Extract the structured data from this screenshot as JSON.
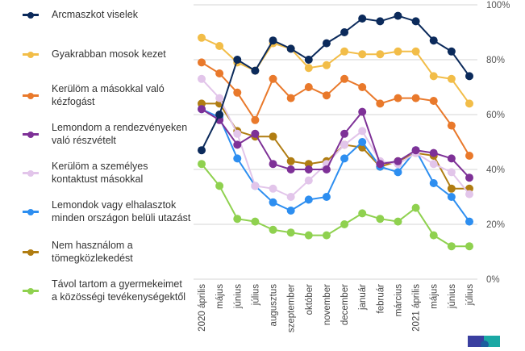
{
  "chart_data": {
    "type": "line",
    "title": "",
    "xlabel": "",
    "ylabel": "",
    "ylim": [
      0,
      100
    ],
    "y_ticks": [
      "0%",
      "20%",
      "40%",
      "60%",
      "80%",
      "100%"
    ],
    "y_tick_values": [
      0,
      20,
      40,
      60,
      80,
      100
    ],
    "y_axis_side": "right",
    "grid": true,
    "legend_position": "left",
    "categories": [
      "2020 április",
      "május",
      "június",
      "július",
      "augusztus",
      "szeptember",
      "október",
      "november",
      "december",
      "január",
      "február",
      "március",
      "2021 április",
      "május",
      "június",
      "július"
    ],
    "series": [
      {
        "name": "Arcmaszkot viselek",
        "color": "#0b2a5b",
        "values": [
          47,
          60,
          80,
          76,
          87,
          84,
          80,
          86,
          90,
          95,
          94,
          96,
          94,
          87,
          83,
          74
        ]
      },
      {
        "name": "Gyakrabban mosok kezet",
        "color": "#f2bd48",
        "values": [
          88,
          85,
          79,
          76,
          86,
          84,
          77,
          78,
          83,
          82,
          82,
          83,
          83,
          74,
          73,
          64
        ]
      },
      {
        "name": "Kerülöm a másokkal való\nkézfogást",
        "color": "#e9792b",
        "values": [
          79,
          75,
          68,
          58,
          73,
          66,
          70,
          67,
          73,
          70,
          64,
          66,
          66,
          65,
          56,
          45
        ]
      },
      {
        "name": "Lemondom a rendezvényeken\nvaló részvételt",
        "color": "#7e3197",
        "values": [
          62,
          58,
          49,
          53,
          42,
          40,
          40,
          40,
          53,
          61,
          42,
          43,
          47,
          46,
          44,
          37
        ]
      },
      {
        "name": "Kerülöm a személyes\nkontaktust másokkal",
        "color": "#e2c5ea",
        "values": [
          73,
          66,
          53,
          34,
          33,
          30,
          36,
          42,
          49,
          54,
          43,
          42,
          46,
          42,
          39,
          31
        ]
      },
      {
        "name": "Lemondok vagy elhalasztok\nminden országon belüli utazást",
        "color": "#2d8ef0",
        "values": [
          62,
          59,
          44,
          34,
          28,
          25,
          29,
          30,
          44,
          50,
          41,
          39,
          47,
          35,
          30,
          21
        ]
      },
      {
        "name": "Nem használom a\ntömegközlekedést",
        "color": "#b07d12",
        "values": [
          64,
          64,
          54,
          52,
          52,
          43,
          42,
          43,
          49,
          48,
          41,
          43,
          46,
          45,
          33,
          33
        ]
      },
      {
        "name": "Távol tartom a gyermekeimet\na közösségi tevékenységektől",
        "color": "#8fd14f",
        "values": [
          42,
          34,
          22,
          21,
          18,
          17,
          16,
          16,
          20,
          24,
          22,
          21,
          26,
          16,
          12,
          12
        ]
      }
    ]
  },
  "logo": {
    "name": "publisher-logo"
  }
}
